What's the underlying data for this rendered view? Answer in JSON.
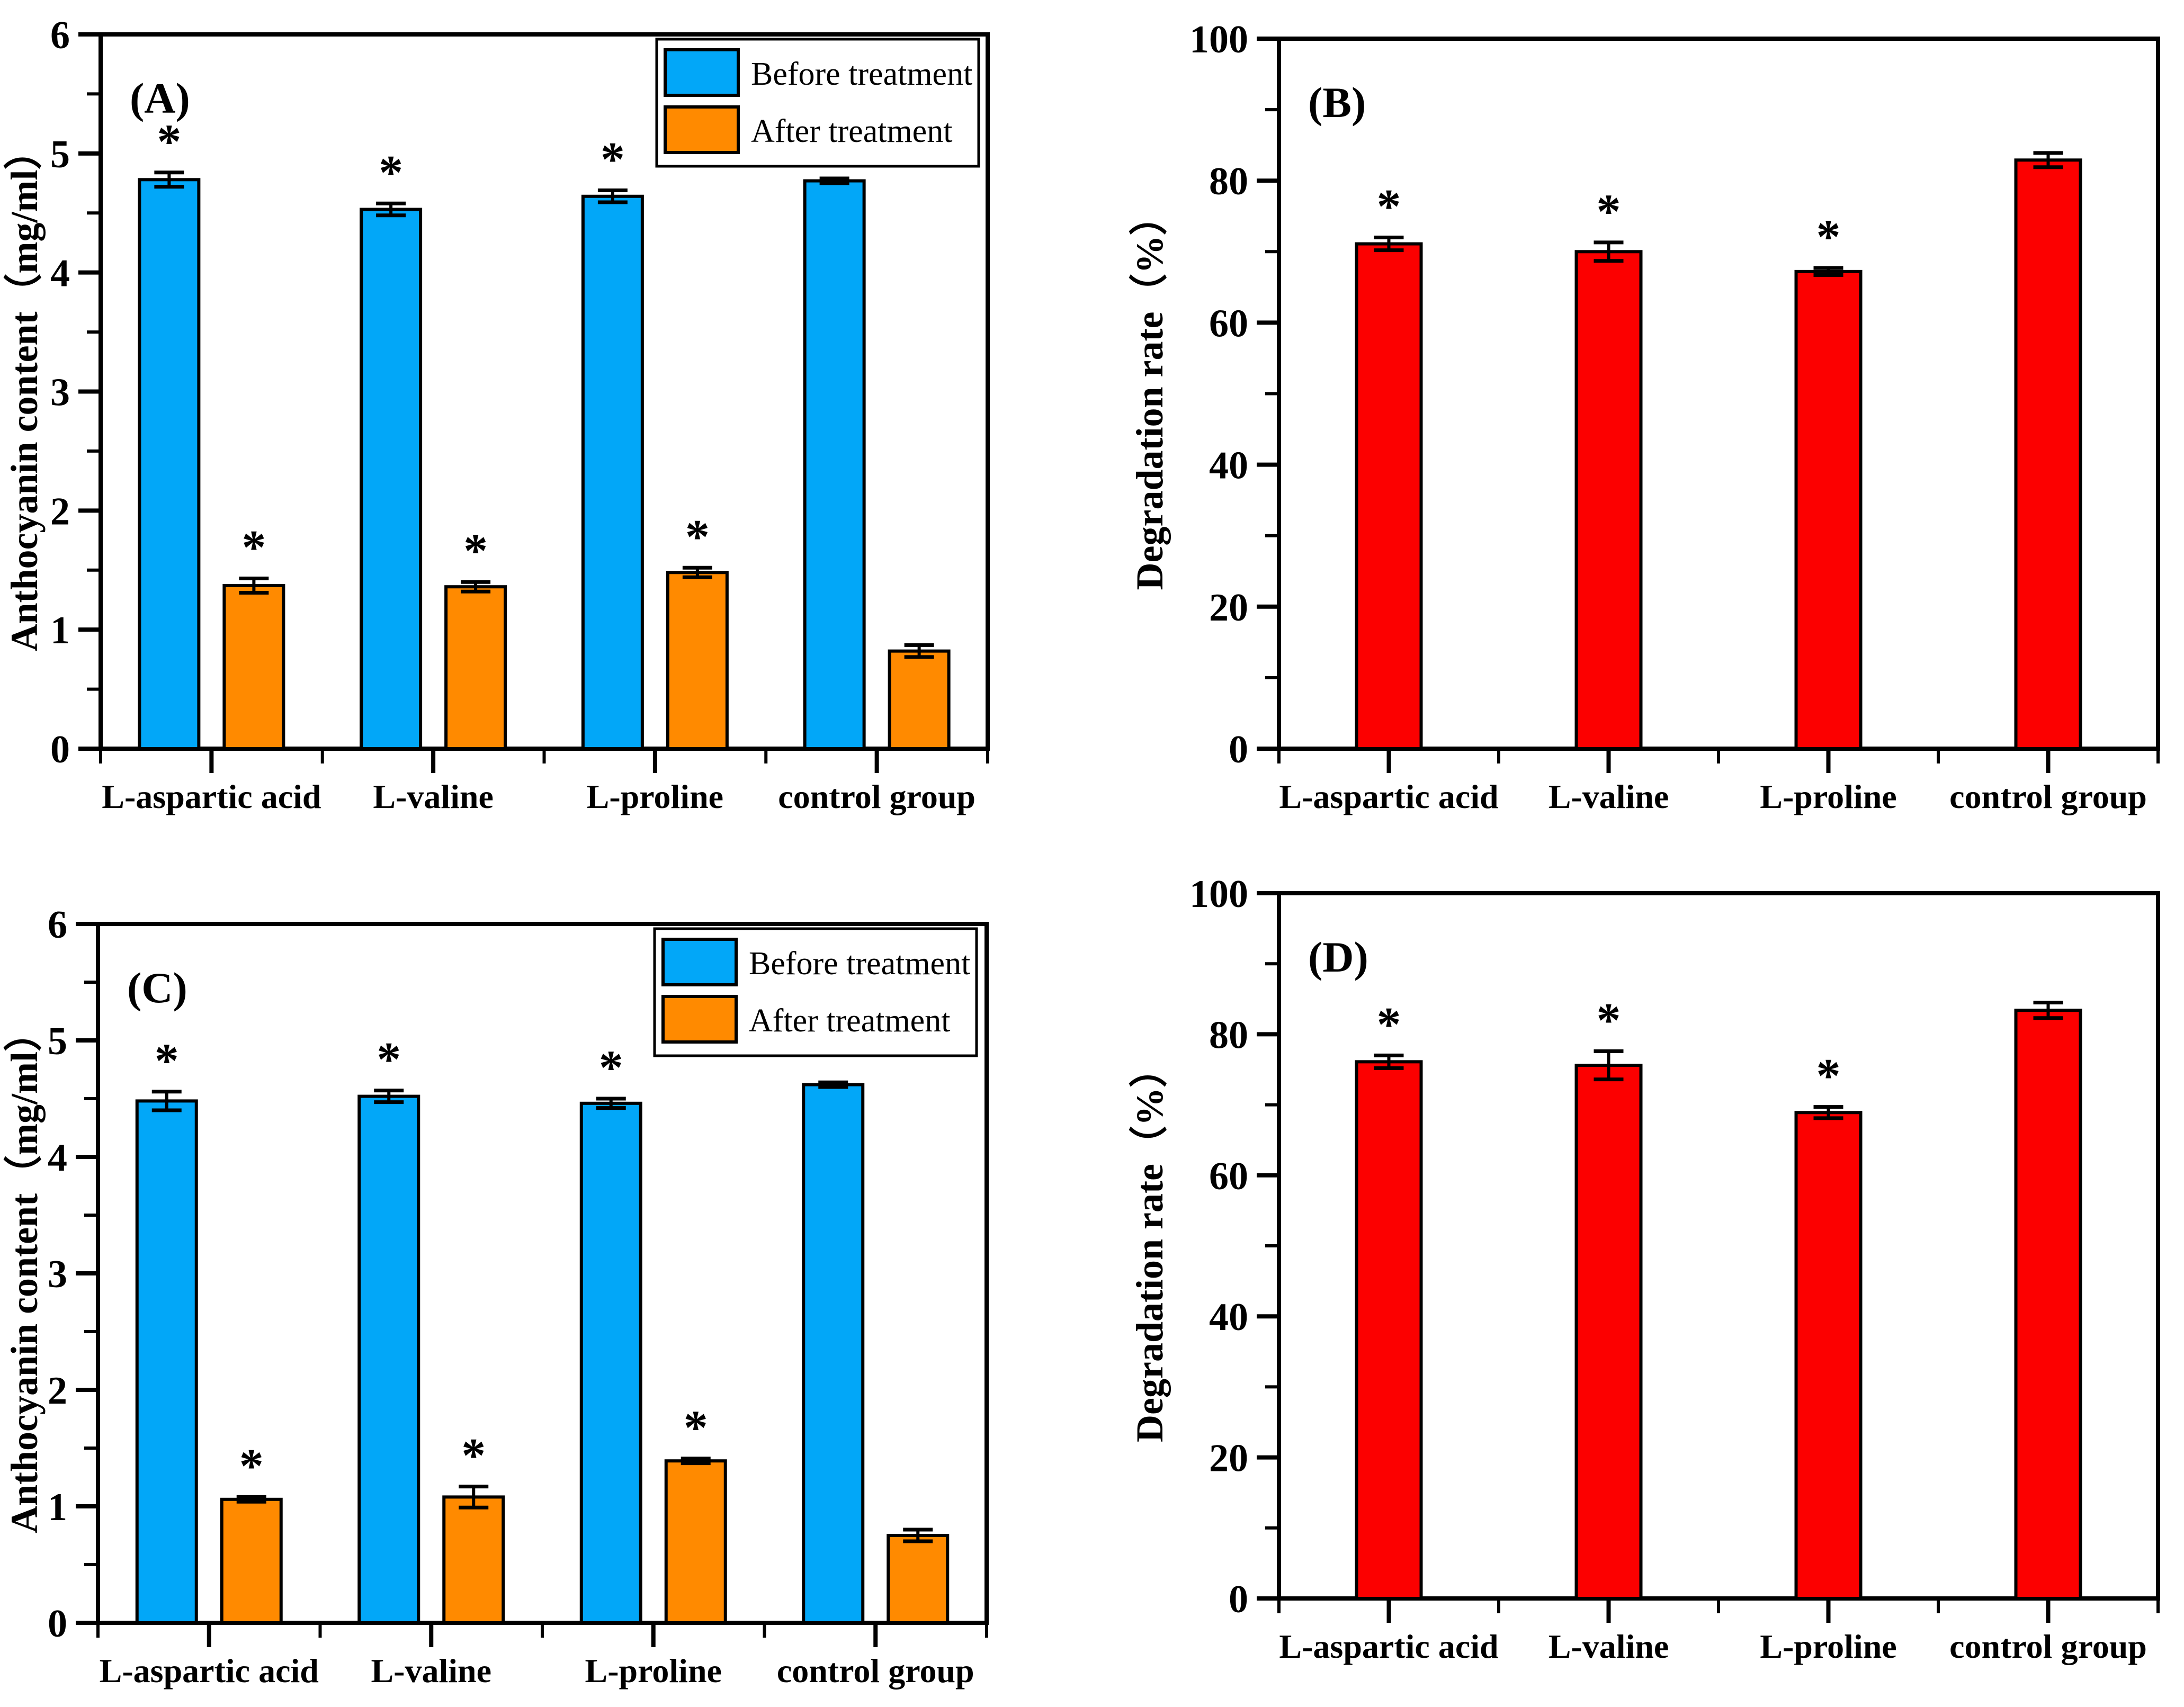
{
  "figure": {
    "description": "Four-panel bar chart figure comparing anthocyanin content before/after treatment and degradation rates",
    "background": "#ffffff"
  },
  "chart_data": [
    {
      "id": "A",
      "panel_label": "(A)",
      "type": "bar",
      "ylabel": "Anthocyanin content（mg/ml）",
      "ylim": [
        0,
        6
      ],
      "ymajor": 1,
      "yminor": 0.5,
      "grid": false,
      "legend_position": "top-right-inside",
      "show_legend": true,
      "categories": [
        "L-aspartic acid",
        "L-valine",
        "L-proline",
        "control group"
      ],
      "series": [
        {
          "name": "Before treatment",
          "color": "#02A7F8",
          "values": [
            4.78,
            4.53,
            4.64,
            4.77
          ],
          "errors": [
            0.06,
            0.05,
            0.05,
            0.02
          ],
          "significant": [
            true,
            true,
            true,
            false
          ]
        },
        {
          "name": "After treatment",
          "color": "#FF8A00",
          "values": [
            1.37,
            1.36,
            1.48,
            0.82
          ],
          "errors": [
            0.06,
            0.04,
            0.04,
            0.05
          ],
          "significant": [
            true,
            true,
            true,
            false
          ]
        }
      ]
    },
    {
      "id": "B",
      "panel_label": "(B)",
      "type": "bar",
      "ylabel": "Degradation rate（%）",
      "ylim": [
        0,
        100
      ],
      "ymajor": 20,
      "yminor": 10,
      "grid": false,
      "show_legend": false,
      "categories": [
        "L-aspartic acid",
        "L-valine",
        "L-proline",
        "control group"
      ],
      "series": [
        {
          "name": "Degradation rate",
          "color": "#FC0000",
          "values": [
            71.1,
            70.0,
            67.2,
            82.9
          ],
          "errors": [
            0.9,
            1.3,
            0.5,
            1.0
          ],
          "significant": [
            true,
            true,
            true,
            false
          ]
        }
      ]
    },
    {
      "id": "C",
      "panel_label": "(C)",
      "type": "bar",
      "ylabel": "Anthocyanin content（mg/ml）",
      "ylim": [
        0,
        6
      ],
      "ymajor": 1,
      "yminor": 0.5,
      "grid": false,
      "legend_position": "top-right-inside",
      "show_legend": true,
      "categories": [
        "L-aspartic acid",
        "L-valine",
        "L-proline",
        "control group"
      ],
      "series": [
        {
          "name": "Before treatment",
          "color": "#02A7F8",
          "values": [
            4.48,
            4.52,
            4.46,
            4.62
          ],
          "errors": [
            0.08,
            0.05,
            0.04,
            0.02
          ],
          "significant": [
            true,
            true,
            true,
            false
          ]
        },
        {
          "name": "After treatment",
          "color": "#FF8A00",
          "values": [
            1.06,
            1.08,
            1.39,
            0.75
          ],
          "errors": [
            0.02,
            0.09,
            0.02,
            0.05
          ],
          "significant": [
            true,
            true,
            true,
            false
          ]
        }
      ]
    },
    {
      "id": "D",
      "panel_label": "(D)",
      "type": "bar",
      "ylabel": "Degradation rate（%）",
      "ylim": [
        0,
        100
      ],
      "ymajor": 20,
      "yminor": 10,
      "grid": false,
      "show_legend": false,
      "categories": [
        "L-aspartic acid",
        "L-valine",
        "L-proline",
        "control group"
      ],
      "series": [
        {
          "name": "Degradation rate",
          "color": "#FC0000",
          "values": [
            76.1,
            75.6,
            68.9,
            83.4
          ],
          "errors": [
            0.9,
            2.0,
            0.8,
            1.1
          ],
          "significant": [
            true,
            true,
            true,
            false
          ]
        }
      ]
    }
  ],
  "annotations": {
    "significance_marker": "*"
  }
}
